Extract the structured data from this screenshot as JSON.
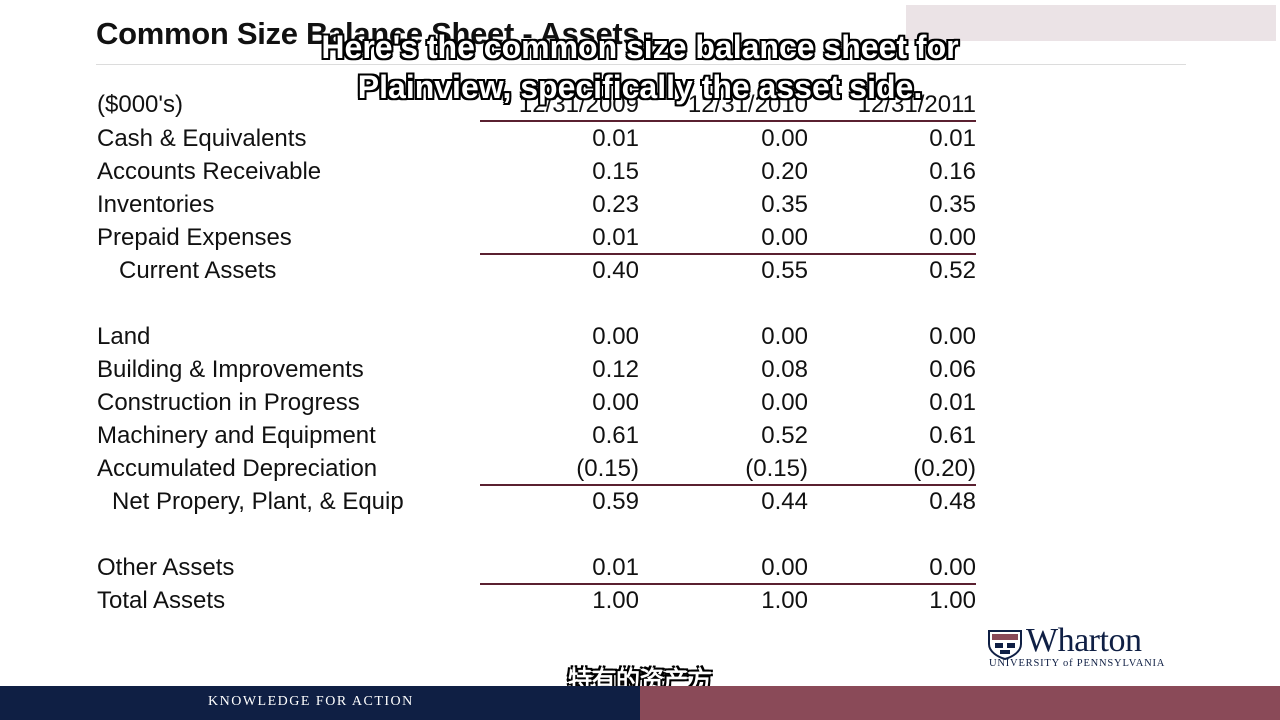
{
  "slide": {
    "title": "Common Size Balance Sheet - Assets",
    "units": "($000's)",
    "columns": [
      "12/31/2009",
      "12/31/2010",
      "12/31/2011"
    ]
  },
  "rows": [
    {
      "label": "Cash & Equivalents",
      "values": [
        "0.01",
        "0.00",
        "0.01"
      ]
    },
    {
      "label": "Accounts Receivable",
      "values": [
        "0.15",
        "0.20",
        "0.16"
      ]
    },
    {
      "label": "Inventories",
      "values": [
        "0.23",
        "0.35",
        "0.35"
      ]
    },
    {
      "label": "Prepaid Expenses",
      "values": [
        "0.01",
        "0.00",
        "0.00"
      ]
    },
    {
      "label": "Current Assets",
      "values": [
        "0.40",
        "0.55",
        "0.52"
      ]
    },
    {
      "label": "Land",
      "values": [
        "0.00",
        "0.00",
        "0.00"
      ]
    },
    {
      "label": "Building & Improvements",
      "values": [
        "0.12",
        "0.08",
        "0.06"
      ]
    },
    {
      "label": "Construction in Progress",
      "values": [
        "0.00",
        "0.00",
        "0.01"
      ]
    },
    {
      "label": "Machinery and Equipment",
      "values": [
        "0.61",
        "0.52",
        "0.61"
      ]
    },
    {
      "label": "Accumulated Depreciation",
      "values": [
        "(0.15)",
        "(0.15)",
        "(0.20)"
      ]
    },
    {
      "label": "Net Propery, Plant, & Equip",
      "values": [
        "0.59",
        "0.44",
        "0.48"
      ]
    },
    {
      "label": "Other Assets",
      "values": [
        "0.01",
        "0.00",
        "0.00"
      ]
    },
    {
      "label": "Total Assets",
      "values": [
        "1.00",
        "1.00",
        "1.00"
      ]
    }
  ],
  "subtitles": {
    "en_line1": "Here's the common size balance sheet for",
    "en_line2": "Plainview, specifically the asset side.",
    "zh": "特有的资产方"
  },
  "footer": {
    "tagline": "KNOWLEDGE FOR ACTION"
  },
  "logo": {
    "name": "Wharton",
    "sub": "UNIVERSITY of PENNSYLVANIA",
    "colors": {
      "navy": "#0f1f44",
      "burgundy": "#8a4a58"
    }
  }
}
